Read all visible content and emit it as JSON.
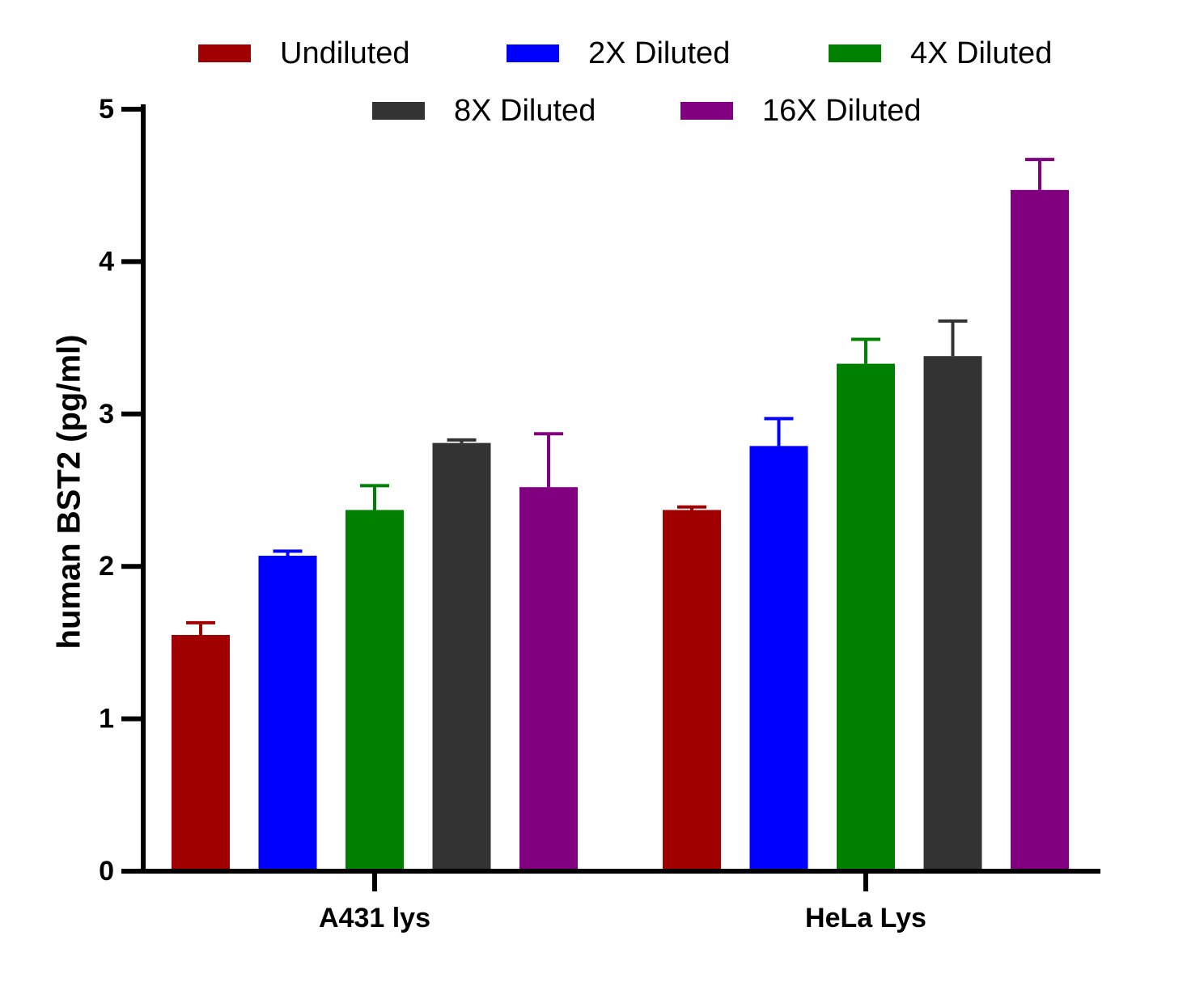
{
  "chart_data": {
    "type": "bar",
    "title": "",
    "xlabel": "",
    "ylabel": "human BST2 (pg/ml)",
    "ylim": [
      0,
      5
    ],
    "yticks": [
      0,
      1,
      2,
      3,
      4,
      5
    ],
    "grid": false,
    "legend_position": "top",
    "error_bars": "upper",
    "categories": [
      "A431 lys",
      "HeLa Lys"
    ],
    "series": [
      {
        "name": "Undiluted",
        "color": "#a00000",
        "values": [
          1.55,
          2.37
        ],
        "errors": [
          0.08,
          0.02
        ]
      },
      {
        "name": "2X Diluted",
        "color": "#0000ff",
        "values": [
          2.07,
          2.79
        ],
        "errors": [
          0.03,
          0.18
        ]
      },
      {
        "name": "4X Diluted",
        "color": "#008000",
        "values": [
          2.37,
          3.33
        ],
        "errors": [
          0.16,
          0.16
        ]
      },
      {
        "name": "8X Diluted",
        "color": "#333333",
        "values": [
          2.81,
          3.38
        ],
        "errors": [
          0.02,
          0.23
        ]
      },
      {
        "name": "16X Diluted",
        "color": "#800080",
        "values": [
          2.52,
          4.47
        ],
        "errors": [
          0.35,
          0.2
        ]
      }
    ]
  }
}
